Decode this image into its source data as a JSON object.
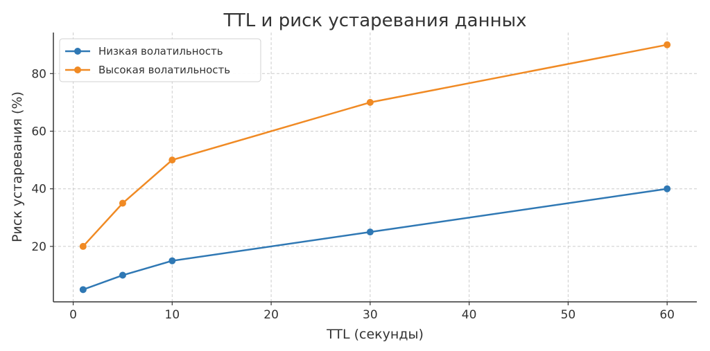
{
  "chart_data": {
    "type": "line",
    "title": "TTL и риск устаревания данных",
    "xlabel": "TTL (секунды)",
    "ylabel": "Риск устаревания (%)",
    "x": [
      1,
      5,
      10,
      30,
      60
    ],
    "series": [
      {
        "name": "Низкая волатильность",
        "color": "#2f78b4",
        "values": [
          5,
          10,
          15,
          25,
          40
        ]
      },
      {
        "name": "Высокая волатильность",
        "color": "#f08a24",
        "values": [
          20,
          35,
          50,
          70,
          90
        ]
      }
    ],
    "xlim": [
      -2,
      63
    ],
    "ylim": [
      0.75,
      94.25
    ],
    "xticks": [
      0,
      10,
      20,
      30,
      40,
      50,
      60
    ],
    "yticks": [
      20,
      40,
      60,
      80
    ],
    "grid": true,
    "legend_position": "top-left"
  }
}
